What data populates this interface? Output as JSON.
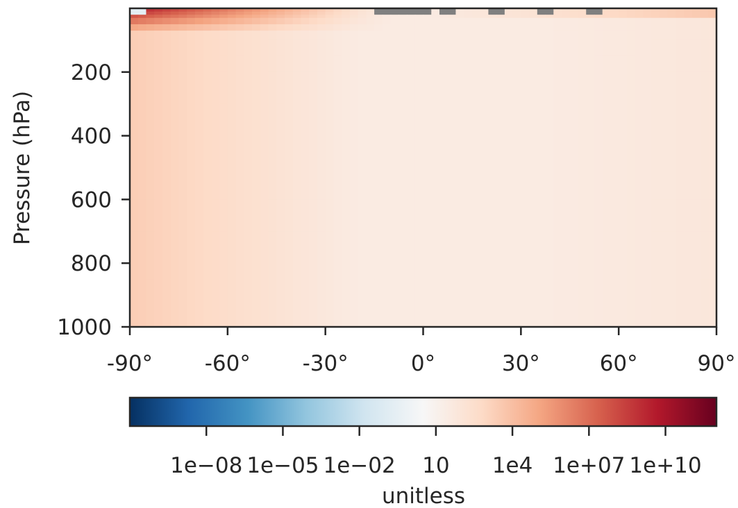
{
  "chart_data": {
    "type": "heatmap",
    "title": "",
    "xlabel": "",
    "ylabel": "Pressure (hPa)",
    "x": [
      -90,
      90
    ],
    "y": [
      0,
      1000
    ],
    "xlim": [
      -90,
      90
    ],
    "ylim": [
      1000,
      0
    ],
    "x_ticks": [
      -90,
      -60,
      -30,
      0,
      30,
      60,
      90
    ],
    "x_tick_labels": [
      "-90°",
      "-60°",
      "-30°",
      "0°",
      "30°",
      "60°",
      "90°"
    ],
    "y_ticks": [
      200,
      400,
      600,
      800,
      1000
    ],
    "y_tick_labels": [
      "200",
      "400",
      "600",
      "800",
      "1000"
    ],
    "grid": false,
    "colorbar": {
      "label": "unitless",
      "scale": "log",
      "cmap": "RdBu_r",
      "range": [
        1e-11,
        1000000000000.0
      ],
      "ticks": [
        1e-08,
        1e-05,
        0.01,
        10,
        10000.0,
        10000000.0,
        10000000000.0
      ],
      "tick_labels": [
        "1e−08",
        "1e−05",
        "1e−02",
        "10",
        "1e4",
        "1e+07",
        "1e+10"
      ],
      "colors": [
        "#053061",
        "#2166ac",
        "#4393c3",
        "#92c5de",
        "#d1e5f0",
        "#f7f7f7",
        "#fddbc7",
        "#f4a582",
        "#d6604d",
        "#b2182b",
        "#67001f"
      ]
    },
    "missing_color": "#808080"
  }
}
